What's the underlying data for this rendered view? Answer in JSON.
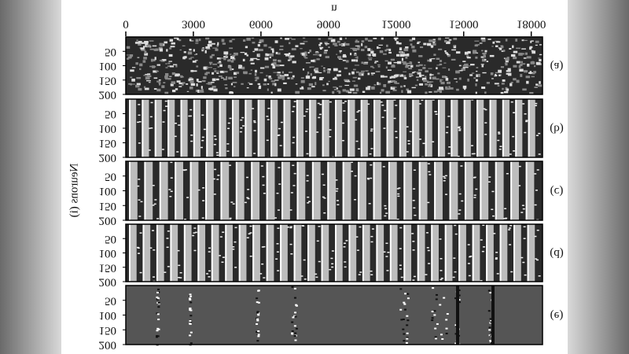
{
  "chart_data": {
    "type": "raster",
    "x_label": "n",
    "xlim": [
      0,
      18500
    ],
    "xticks": [
      0,
      3000,
      6000,
      9000,
      12000,
      15000,
      18000
    ],
    "y_label": "Neurons (i)",
    "panels": [
      {
        "label": "(a)",
        "ylim": [
          0,
          200
        ],
        "yticks": [
          50,
          100,
          150,
          200
        ]
      },
      {
        "label": "(b)",
        "ylim": [
          0,
          200
        ],
        "yticks": [
          50,
          100,
          150,
          200
        ]
      },
      {
        "label": "(c)",
        "ylim": [
          0,
          200
        ],
        "yticks": [
          50,
          100,
          150,
          200
        ]
      },
      {
        "label": "(d)",
        "ylim": [
          0,
          200
        ],
        "yticks": [
          50,
          100,
          150,
          200
        ]
      },
      {
        "label": "(e)",
        "ylim": [
          0,
          200
        ],
        "yticks": [
          50,
          100,
          150,
          200
        ]
      }
    ]
  }
}
